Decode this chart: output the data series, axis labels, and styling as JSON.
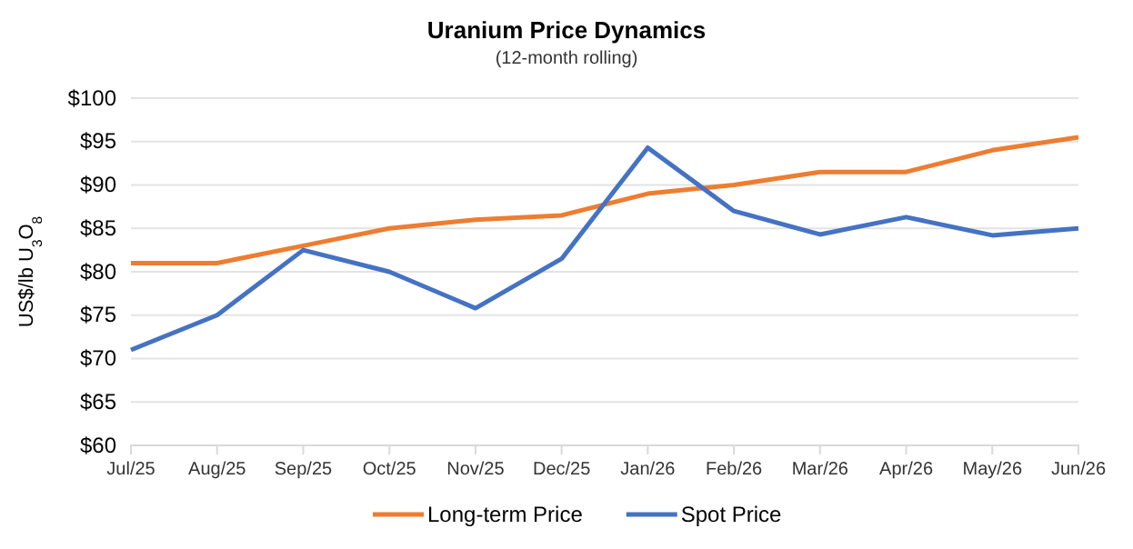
{
  "chart_data": {
    "type": "line",
    "title": "Uranium Price Dynamics",
    "subtitle": "(12-month rolling)",
    "ylabel": "US$/lb U$_{3}$O$_{8}$",
    "categories": [
      "Jul/25",
      "Aug/25",
      "Sep/25",
      "Oct/25",
      "Nov/25",
      "Dec/25",
      "Jan/26",
      "Feb/26",
      "Mar/26",
      "Apr/26",
      "May/26",
      "Jun/26"
    ],
    "series": [
      {
        "name": "Long-term Price",
        "color": "#ed7d31",
        "values": [
          81,
          81,
          83,
          85,
          86,
          86.5,
          89,
          90,
          91.5,
          91.5,
          94,
          95.5
        ]
      },
      {
        "name": "Spot Price",
        "color": "#4472c4",
        "values": [
          71,
          75,
          82.5,
          80,
          75.8,
          81.5,
          94.3,
          87,
          84.3,
          86.3,
          84.2,
          85
        ]
      }
    ],
    "ylim": [
      60,
      100
    ],
    "yticks": [
      {
        "value": 60,
        "label": "$60"
      },
      {
        "value": 65,
        "label": "$65"
      },
      {
        "value": 70,
        "label": "$70"
      },
      {
        "value": 75,
        "label": "$75"
      },
      {
        "value": 80,
        "label": "$80"
      },
      {
        "value": 85,
        "label": "$85"
      },
      {
        "value": 90,
        "label": "$90"
      },
      {
        "value": 95,
        "label": "$95"
      },
      {
        "value": 100,
        "label": "$100"
      }
    ],
    "grid": "y",
    "legend": "bottom",
    "marker": "none",
    "line_style": "solid"
  }
}
